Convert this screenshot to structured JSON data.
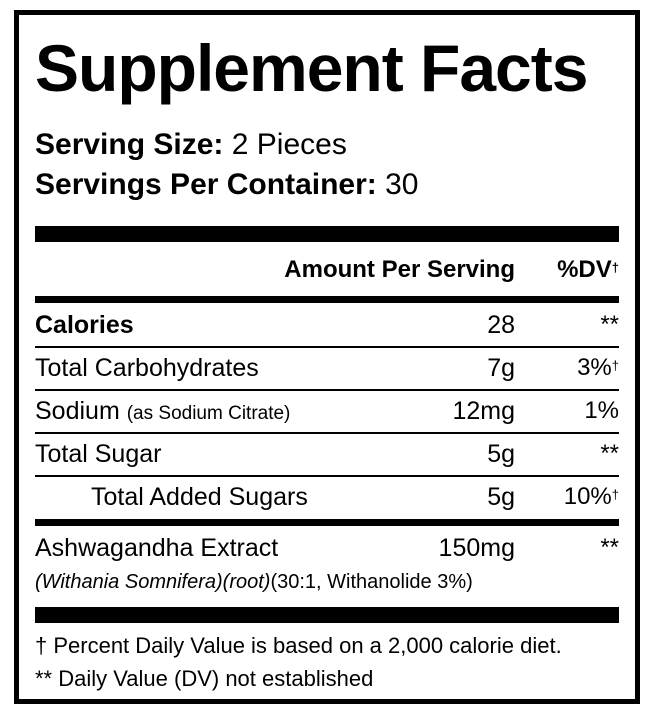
{
  "title": "Supplement Facts",
  "serving_size": {
    "label": "Serving Size:",
    "value": "2 Pieces"
  },
  "servings_per_container": {
    "label": "Servings Per Container:",
    "value": "30"
  },
  "header": {
    "amount": "Amount Per Serving",
    "dv": "%DV",
    "dv_mark": "†"
  },
  "rows": [
    {
      "label": "Calories",
      "amount": "28",
      "dv": "**",
      "dv_mark": ""
    },
    {
      "label": "Total Carbohydrates",
      "amount": "7g",
      "dv": "3%",
      "dv_mark": "†"
    },
    {
      "label": "Sodium",
      "note": "(as Sodium Citrate)",
      "amount": "12mg",
      "dv": "1%",
      "dv_mark": ""
    },
    {
      "label": "Total Sugar",
      "amount": "5g",
      "dv": "**",
      "dv_mark": ""
    },
    {
      "label": "Total Added Sugars",
      "amount": "5g",
      "dv": "10%",
      "dv_mark": "†"
    },
    {
      "label": "Ashwagandha Extract",
      "amount": "150mg",
      "dv": "**",
      "dv_mark": "",
      "sub_italic": "(Withania Somnifera)(root)",
      "sub_plain": "(30:1, Withanolide 3%)"
    }
  ],
  "footnotes": [
    "† Percent Daily Value is based on a 2,000 calorie diet.",
    "** Daily Value (DV) not established"
  ]
}
